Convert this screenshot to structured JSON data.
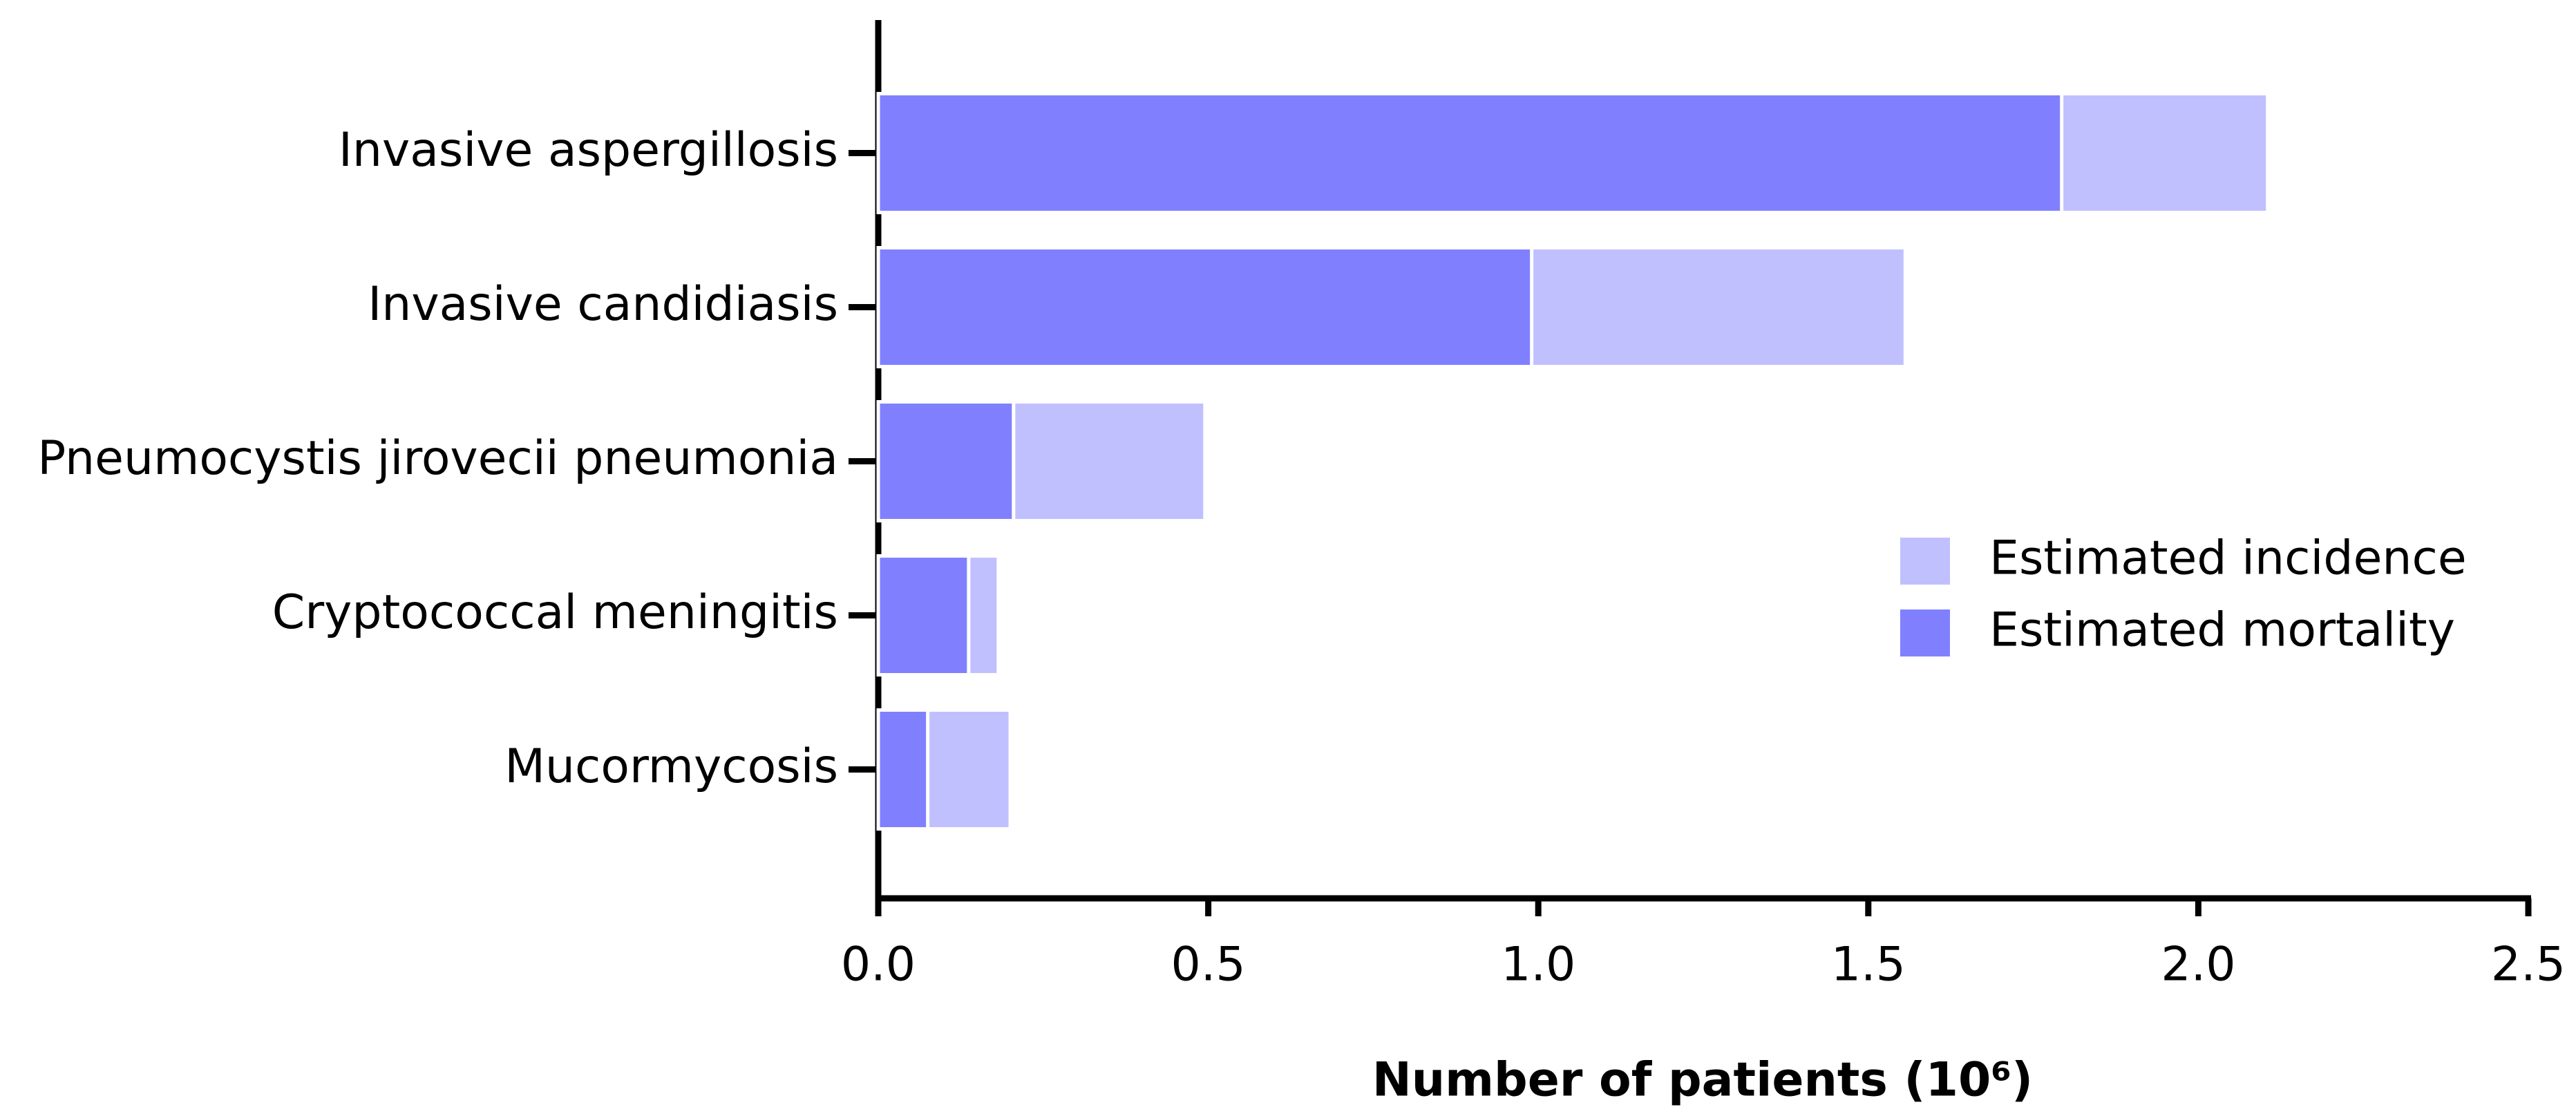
{
  "chart_data": {
    "type": "bar",
    "orientation": "horizontal",
    "x_label": "Number of patients (10⁶)",
    "categories": [
      "Invasive aspergillosis",
      "Invasive candidiasis",
      "Pneumocystis jirovecii pneumonia",
      "Cryptococcal meningitis",
      "Mucormycosis"
    ],
    "series": [
      {
        "name": "Estimated incidence",
        "color": "#c0c0ff",
        "values": [
          2.105,
          1.556,
          0.495,
          0.182,
          0.2
        ]
      },
      {
        "name": "Estimated mortality",
        "color": "#8080ff",
        "values": [
          1.793,
          0.99,
          0.205,
          0.137,
          0.075
        ]
      }
    ],
    "xlim": [
      0,
      2.5
    ],
    "xticks": [
      {
        "value": 0,
        "label": "0.0"
      },
      0.5,
      {
        "value": 1,
        "label": "1.0"
      },
      1.5,
      {
        "value": 2,
        "label": "2.0"
      },
      2.5
    ],
    "legend": "right",
    "grid": false
  }
}
